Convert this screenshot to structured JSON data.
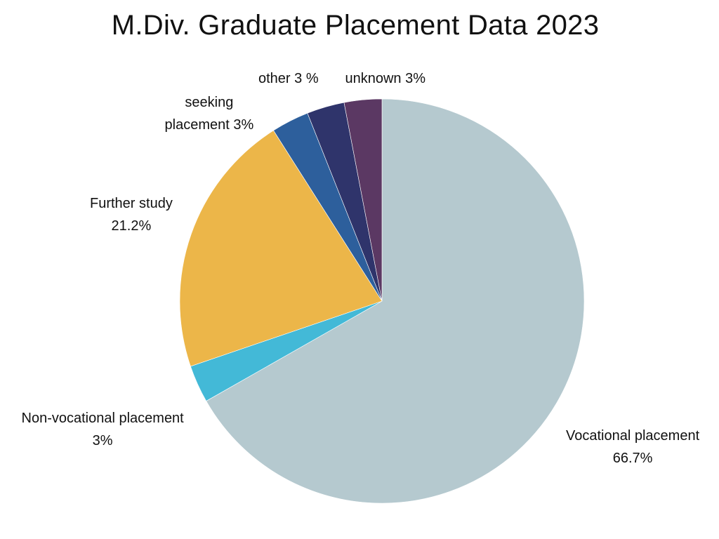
{
  "chart_data": {
    "type": "pie",
    "title": "M.Div. Graduate Placement Data 2023",
    "start_angle_deg": 0,
    "direction": "clockwise",
    "slices": [
      {
        "name": "Vocational placement",
        "value": 66.7,
        "label_lines": [
          "Vocational placement",
          "66.7%"
        ],
        "color": "#b5c9cf"
      },
      {
        "name": "Non-vocational placement",
        "value": 3,
        "label_lines": [
          "Non-vocational placement",
          "3%"
        ],
        "color": "#43b9d7"
      },
      {
        "name": "Further study",
        "value": 21.2,
        "label_lines": [
          "Further study",
          "21.2%"
        ],
        "color": "#ecb649"
      },
      {
        "name": "seeking placement",
        "value": 3,
        "label_lines": [
          "seeking",
          "placement 3%"
        ],
        "color": "#2d5f9c"
      },
      {
        "name": "other",
        "value": 3,
        "label_lines": [
          "other 3 %"
        ],
        "color": "#2f346b"
      },
      {
        "name": "unknown",
        "value": 3,
        "label_lines": [
          "unknown 3%"
        ],
        "color": "#5b3863"
      }
    ]
  }
}
